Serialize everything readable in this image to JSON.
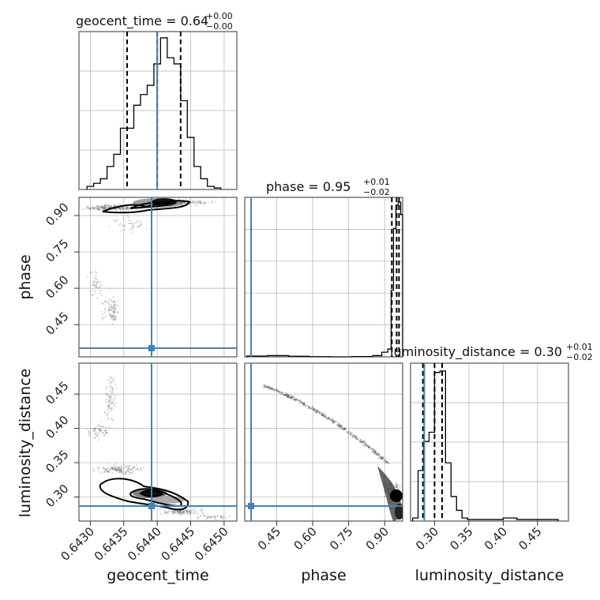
{
  "colors": {
    "truth": "#4682b4",
    "hist": "#000000",
    "quantile": "#000000",
    "grid": "#b0b0b0",
    "scatter": "#555555"
  },
  "chart_data": {
    "type": "corner",
    "parameters": [
      "geocent_time",
      "phase",
      "luminosity_distance"
    ],
    "truths": {
      "geocent_time": 0.644,
      "phase": 0.314,
      "luminosity_distance": 0.285
    },
    "ranges": {
      "geocent_time": [
        0.64283,
        0.64519
      ],
      "phase": [
        0.317,
        0.975
      ],
      "luminosity_distance": [
        0.265,
        0.495
      ]
    },
    "ticks": {
      "geocent_time": [
        "0.6430",
        "0.6435",
        "0.6440",
        "0.6445",
        "0.6450"
      ],
      "phase": [
        "0.45",
        "0.60",
        "0.75",
        "0.90"
      ],
      "luminosity_distance": [
        "0.30",
        "0.35",
        "0.40",
        "0.45"
      ]
    },
    "titles": {
      "geocent_time": {
        "main": "geocent_time = 0.64",
        "plus": "+0.00",
        "minus": "−0.00"
      },
      "phase": {
        "main": "phase = 0.95",
        "plus": "+0.01",
        "minus": "−0.02"
      },
      "luminosity_distance": {
        "main": "luminosity_distance = 0.30",
        "plus": "+0.01",
        "minus": "−0.02"
      }
    },
    "histograms": {
      "geocent_time": {
        "edges": [
          0.64295,
          0.64305,
          0.64315,
          0.64325,
          0.64335,
          0.64345,
          0.64355,
          0.64365,
          0.64375,
          0.64385,
          0.64395,
          0.64405,
          0.64415,
          0.64425,
          0.64435,
          0.64445,
          0.64455,
          0.64465,
          0.64475,
          0.64485,
          0.64495
        ],
        "counts": [
          0.02,
          0.04,
          0.07,
          0.15,
          0.23,
          0.4,
          0.4,
          0.55,
          0.62,
          0.68,
          0.82,
          0.99,
          0.86,
          0.82,
          0.58,
          0.34,
          0.15,
          0.07,
          0.02,
          0.01
        ],
        "quantiles": [
          0.64355,
          0.644,
          0.64435
        ]
      },
      "phase": {
        "edges": [
          0.325,
          0.412,
          0.5,
          0.587,
          0.675,
          0.762,
          0.85,
          0.888,
          0.913,
          0.927,
          0.937,
          0.947,
          0.957,
          0.967,
          0.975
        ],
        "counts": [
          0.005,
          0.008,
          0.004,
          0.001,
          0.0,
          0.002,
          0.008,
          0.03,
          0.05,
          0.43,
          0.83,
          0.98,
          1.0,
          0.92
        ],
        "quantiles": [
          0.93,
          0.95,
          0.96
        ]
      },
      "luminosity_distance": {
        "edges": [
          0.268,
          0.276,
          0.284,
          0.292,
          0.3,
          0.308,
          0.316,
          0.324,
          0.332,
          0.34,
          0.348,
          0.36,
          0.38,
          0.4,
          0.42,
          0.45,
          0.48
        ],
        "counts": [
          0.02,
          0.33,
          0.52,
          0.58,
          0.97,
          0.98,
          0.38,
          0.16,
          0.07,
          0.02,
          0.01,
          0.01,
          0.01,
          0.02,
          0.01,
          0.01
        ],
        "quantiles": [
          0.283,
          0.3,
          0.311
        ]
      }
    },
    "axis_labels": {
      "x": [
        "geocent_time",
        "phase",
        "luminosity_distance"
      ],
      "y": [
        "phase",
        "luminosity_distance"
      ]
    }
  }
}
